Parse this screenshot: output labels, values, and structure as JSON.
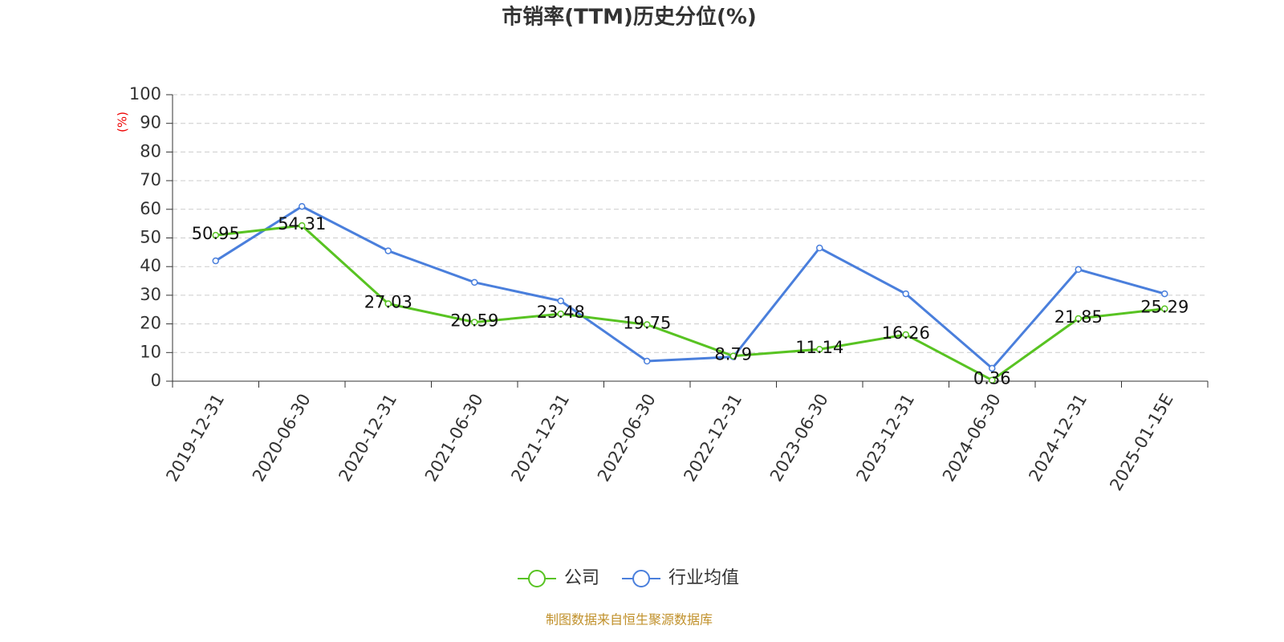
{
  "chart_data": {
    "type": "line",
    "title": "市销率(TTM)历史分位(%)",
    "y_label": "(%)",
    "source": "制图数据来自恒生聚源数据库",
    "categories": [
      "2019-12-31",
      "2020-06-30",
      "2020-12-31",
      "2021-06-30",
      "2021-12-31",
      "2022-06-30",
      "2022-12-31",
      "2023-06-30",
      "2023-12-31",
      "2024-06-30",
      "2024-12-31",
      "2025-01-15E"
    ],
    "series": [
      {
        "name": "公司",
        "color": "#58c322",
        "show_labels": true,
        "values": [
          50.95,
          54.31,
          27.03,
          20.59,
          23.48,
          19.75,
          8.79,
          11.14,
          16.26,
          0.36,
          21.85,
          25.29
        ]
      },
      {
        "name": "行业均值",
        "color": "#4a7fdc",
        "show_labels": false,
        "values": [
          42,
          61,
          45.5,
          34.5,
          28,
          7,
          8.5,
          46.5,
          30.5,
          4.5,
          39,
          30.5
        ]
      }
    ],
    "ylim": [
      0,
      100
    ],
    "yticks": [
      0,
      10,
      20,
      30,
      40,
      50,
      60,
      70,
      80,
      90,
      100
    ],
    "grid": true,
    "legend": "bottom"
  }
}
